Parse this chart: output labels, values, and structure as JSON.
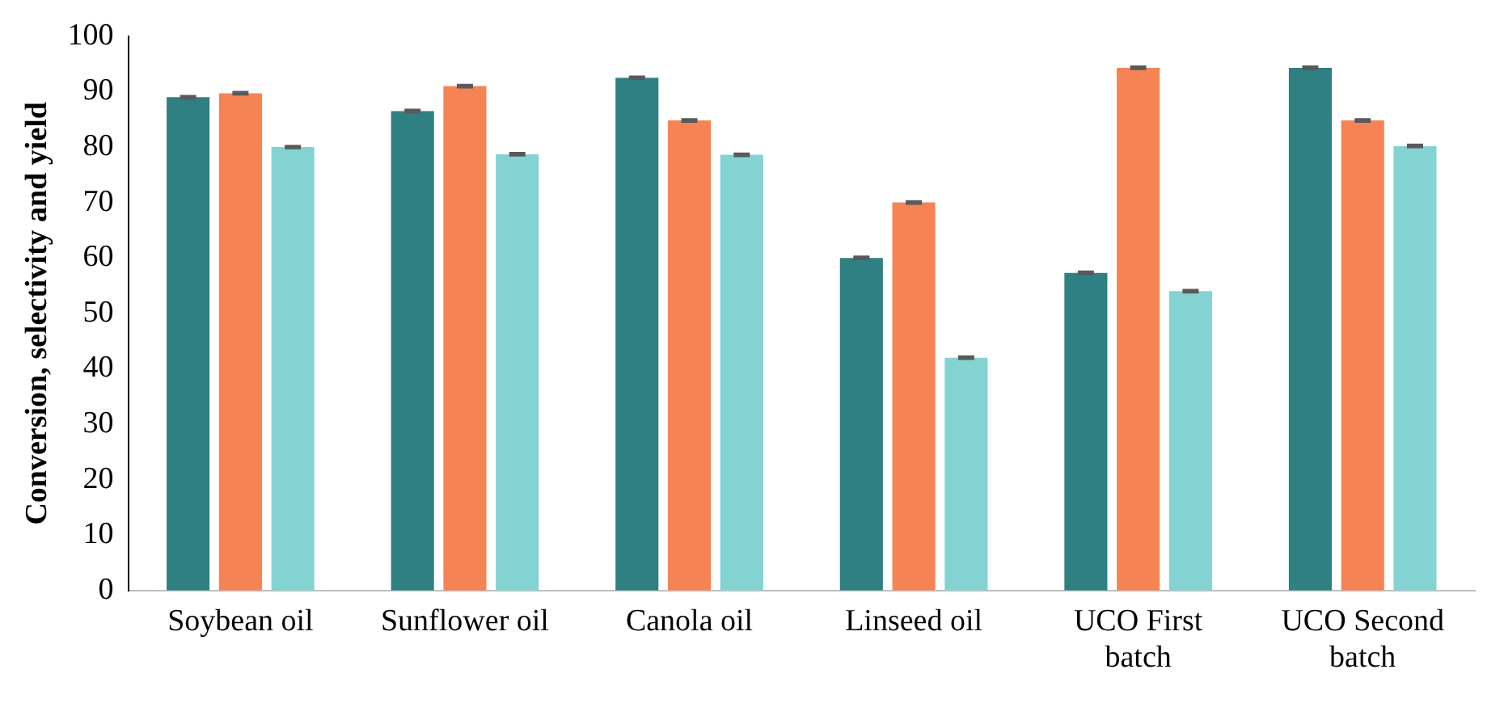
{
  "chart_data": {
    "type": "bar",
    "ylabel": "Conversion, selectivity and yield",
    "categories": [
      "Soybean oil",
      "Sunflower oil",
      "Canola oil",
      "Linseed oil",
      "UCO First batch",
      "UCO Second batch"
    ],
    "series": [
      {
        "color": "#2e8083",
        "values": [
          89,
          86.5,
          92.5,
          60,
          57.3,
          94.3
        ],
        "errors": [
          0.2,
          0.2,
          0.2,
          0.2,
          0.2,
          0.2
        ]
      },
      {
        "color": "#f58354",
        "values": [
          89.7,
          91,
          84.8,
          70,
          94.3,
          84.8
        ],
        "errors": [
          0.2,
          0.2,
          0.2,
          0.2,
          0.2,
          0.2
        ]
      },
      {
        "color": "#84d3d3",
        "values": [
          80,
          78.7,
          78.6,
          42,
          54,
          80.2
        ],
        "errors": [
          0.2,
          0.2,
          0.2,
          0.2,
          0.2,
          0.2
        ]
      }
    ],
    "ylim": [
      0,
      100
    ],
    "yticks": [
      0,
      10,
      20,
      30,
      40,
      50,
      60,
      70,
      80,
      90,
      100
    ],
    "grid": false,
    "legend": false
  }
}
